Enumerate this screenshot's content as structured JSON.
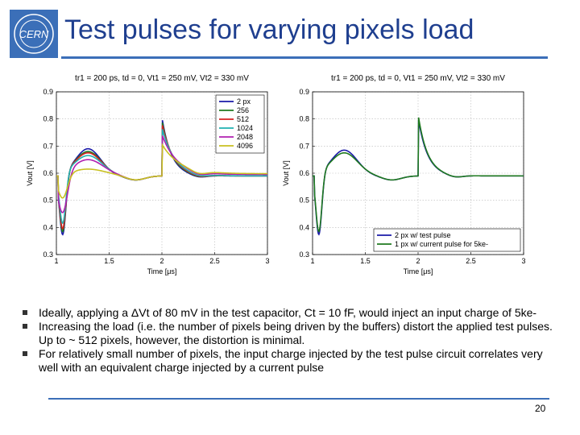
{
  "slide": {
    "title": "Test pulses for varying pixels load",
    "logo_text": "CERN",
    "page_number": "20",
    "bullets": [
      "Ideally, applying a ΔVt of 80 mV in the test capacitor, Ct = 10 fF, would inject an input charge of 5ke-",
      "Increasing the load (i.e. the number of pixels being driven by the buffers) distort the applied test pulses. Up to ~ 512 pixels, however, the distortion is minimal.",
      "For relatively small number of pixels, the input charge injected by the test pulse circuit correlates very well with an equivalent charge injected by a current pulse"
    ]
  },
  "chart_data": [
    {
      "type": "line",
      "title": "tr1 = 200 ps, td = 0, Vt1 = 250 mV, Vt2 = 330 mV",
      "xlabel": "Time [μs]",
      "ylabel": "Vout [V]",
      "xlim": [
        1,
        3
      ],
      "ylim": [
        0.3,
        0.9
      ],
      "xticks": [
        "1",
        "1.5",
        "2",
        "2.5",
        "3"
      ],
      "yticks": [
        "0.3",
        "0.4",
        "0.5",
        "0.6",
        "0.7",
        "0.8",
        "0.9"
      ],
      "legend_position": "top-right",
      "series": [
        {
          "name": "2 px",
          "color": "#1a1aa8",
          "dip": 0.36,
          "peak1": 0.69,
          "peak2": 0.8,
          "settle": 0.59
        },
        {
          "name": "256",
          "color": "#1f7a1f",
          "dip": 0.37,
          "peak1": 0.68,
          "peak2": 0.79,
          "settle": 0.59
        },
        {
          "name": "512",
          "color": "#d42020",
          "dip": 0.38,
          "peak1": 0.675,
          "peak2": 0.78,
          "settle": 0.59
        },
        {
          "name": "1024",
          "color": "#20b0b0",
          "dip": 0.4,
          "peak1": 0.665,
          "peak2": 0.765,
          "settle": 0.59
        },
        {
          "name": "2048",
          "color": "#b020b0",
          "dip": 0.44,
          "peak1": 0.65,
          "peak2": 0.74,
          "settle": 0.595
        },
        {
          "name": "4096",
          "color": "#c8c020",
          "dip": 0.5,
          "peak1": 0.615,
          "peak2": 0.705,
          "settle": 0.598
        }
      ]
    },
    {
      "type": "line",
      "title": "tr1 = 200 ps, td = 0, Vt1 = 250 mV, Vt2 = 330 mV",
      "xlabel": "Time [μs]",
      "ylabel": "Vout [V]",
      "xlim": [
        1,
        3
      ],
      "ylim": [
        0.3,
        0.9
      ],
      "xticks": [
        "1",
        "1.5",
        "2",
        "2.5",
        "3"
      ],
      "yticks": [
        "0.3",
        "0.4",
        "0.5",
        "0.6",
        "0.7",
        "0.8",
        "0.9"
      ],
      "legend_position": "bottom-right",
      "series": [
        {
          "name": "2 px w/ test pulse",
          "color": "#1a1aa8",
          "dip": 0.36,
          "peak1": 0.685,
          "peak2": 0.8,
          "settle": 0.59
        },
        {
          "name": "1 px w/ current pulse for 5ke-",
          "color": "#1f7a1f",
          "dip": 0.37,
          "peak1": 0.675,
          "peak2": 0.81,
          "settle": 0.59
        }
      ]
    }
  ]
}
